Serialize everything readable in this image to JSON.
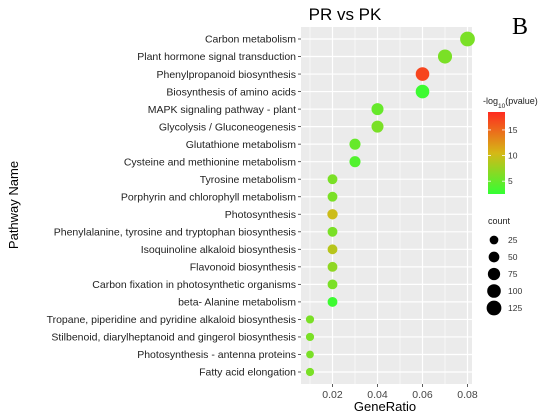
{
  "panel_letter": "B",
  "colors": {
    "panel_bg": "#ebebeb",
    "grid": "#ffffff",
    "low": "#33ff33",
    "mid": "#d6b816",
    "high": "#ff2b20"
  },
  "chart_data": {
    "type": "scatter",
    "title": "PR vs PK",
    "xlabel": "GeneRatio",
    "ylabel": "Pathway Name",
    "xlim": [
      0.006,
      0.082
    ],
    "x_ticks": [
      {
        "value": 0.02,
        "label": "0.02"
      },
      {
        "value": 0.04,
        "label": "0.04"
      },
      {
        "value": 0.06,
        "label": "0.06"
      },
      {
        "value": 0.08,
        "label": "0.08"
      }
    ],
    "grid": true,
    "color_legend": {
      "title_prefix": "-",
      "title_main": "log",
      "title_sub": "10",
      "title_suffix": "(pvalue)",
      "range": [
        2.5,
        18.5
      ],
      "ticks": [
        {
          "value": 5,
          "label": "5"
        },
        {
          "value": 10,
          "label": "10"
        },
        {
          "value": 15,
          "label": "15"
        }
      ],
      "placement": "right"
    },
    "size_legend": {
      "title": "count",
      "range": [
        5,
        135
      ],
      "entries": [
        {
          "value": 25,
          "label": "25"
        },
        {
          "value": 50,
          "label": "50"
        },
        {
          "value": 75,
          "label": "75"
        },
        {
          "value": 100,
          "label": "100"
        },
        {
          "value": 125,
          "label": "125"
        }
      ],
      "placement": "right"
    },
    "points": [
      {
        "pathway": "Carbon metabolism",
        "x": 0.08,
        "neglog10p": 6,
        "count": 125
      },
      {
        "pathway": "Plant hormone signal transduction",
        "x": 0.07,
        "neglog10p": 6,
        "count": 110
      },
      {
        "pathway": "Phenylpropanoid biosynthesis",
        "x": 0.06,
        "neglog10p": 17,
        "count": 100
      },
      {
        "pathway": "Biosynthesis of amino acids",
        "x": 0.06,
        "neglog10p": 3,
        "count": 100
      },
      {
        "pathway": "MAPK signaling pathway -  plant",
        "x": 0.04,
        "neglog10p": 5,
        "count": 70
      },
      {
        "pathway": "Glycolysis / Gluconeogenesis",
        "x": 0.04,
        "neglog10p": 6,
        "count": 70
      },
      {
        "pathway": "Glutathione metabolism",
        "x": 0.03,
        "neglog10p": 5,
        "count": 55
      },
      {
        "pathway": "Cysteine and methionine metabolism",
        "x": 0.03,
        "neglog10p": 4,
        "count": 55
      },
      {
        "pathway": "Tyrosine metabolism",
        "x": 0.02,
        "neglog10p": 6,
        "count": 38
      },
      {
        "pathway": "Porphyrin and chlorophyll metabolism",
        "x": 0.02,
        "neglog10p": 6,
        "count": 38
      },
      {
        "pathway": "Photosynthesis",
        "x": 0.02,
        "neglog10p": 10,
        "count": 45
      },
      {
        "pathway": "Phenylalanine, tyrosine and tryptophan biosynthesis",
        "x": 0.02,
        "neglog10p": 6,
        "count": 38
      },
      {
        "pathway": "Isoquinoline alkaloid biosynthesis",
        "x": 0.02,
        "neglog10p": 9,
        "count": 38
      },
      {
        "pathway": "Flavonoid biosynthesis",
        "x": 0.02,
        "neglog10p": 7,
        "count": 38
      },
      {
        "pathway": "Carbon fixation in photosynthetic organisms",
        "x": 0.02,
        "neglog10p": 6,
        "count": 38
      },
      {
        "pathway": "beta- Alanine metabolism",
        "x": 0.02,
        "neglog10p": 3,
        "count": 38
      },
      {
        "pathway": "Tropane, piperidine and pyridine alkaloid biosynthesis",
        "x": 0.01,
        "neglog10p": 6,
        "count": 20
      },
      {
        "pathway": "Stilbenoid, diarylheptanoid and gingerol biosynthesis",
        "x": 0.01,
        "neglog10p": 6,
        "count": 20
      },
      {
        "pathway": "Photosynthesis -  antenna proteins",
        "x": 0.01,
        "neglog10p": 6,
        "count": 16
      },
      {
        "pathway": "Fatty acid elongation",
        "x": 0.01,
        "neglog10p": 6,
        "count": 20
      }
    ]
  }
}
